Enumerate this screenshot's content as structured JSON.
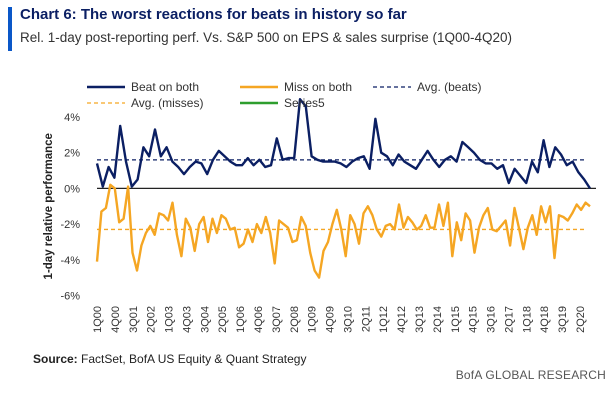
{
  "header": {
    "title": "Chart 6: The worst reactions for beats in history so far",
    "subtitle": "Rel. 1-day post-reporting perf. Vs. S&P 500 on EPS & sales surprise (1Q00-4Q20)"
  },
  "footer": {
    "source_label": "Source:",
    "source_text": " FactSet, BofA US Equity & Quant Strategy",
    "brand": "BofA GLOBAL RESEARCH"
  },
  "colors": {
    "beat": "#0b1f63",
    "miss": "#f5a623",
    "series5": "#2e9e2e",
    "accent": "#0a57c8"
  },
  "chart_data": {
    "type": "line",
    "ylabel": "1-day relative performance",
    "ylim": [
      -6,
      4
    ],
    "yticks": [
      4,
      2,
      0,
      -2,
      -4,
      -6
    ],
    "ytick_labels": [
      "4%",
      "2%",
      "0%",
      "-2%",
      "-4%",
      "-6%"
    ],
    "xtick_labels": [
      "1Q00",
      "4Q00",
      "3Q01",
      "2Q02",
      "1Q03",
      "4Q03",
      "3Q04",
      "2Q05",
      "1Q06",
      "4Q06",
      "3Q07",
      "2Q08",
      "1Q09",
      "4Q09",
      "3Q10",
      "2Q11",
      "1Q12",
      "4Q12",
      "3Q13",
      "2Q14",
      "1Q15",
      "4Q15",
      "3Q16",
      "2Q17",
      "1Q18",
      "4Q18",
      "3Q19",
      "2Q20"
    ],
    "grid": false,
    "legend": "top",
    "series": [
      {
        "name": "Beat on both",
        "style": "solid",
        "color": "#0b1f63",
        "values": [
          1.4,
          0.1,
          1.2,
          0.6,
          3.5,
          1.5,
          0.1,
          0.5,
          2.3,
          1.8,
          3.3,
          1.8,
          2.3,
          1.5,
          1.2,
          0.8,
          1.2,
          1.5,
          1.4,
          0.8,
          1.6,
          2.1,
          1.8,
          1.5,
          1.3,
          1.3,
          1.7,
          1.3,
          1.6,
          1.2,
          1.3,
          2.8,
          1.6,
          1.7,
          1.7,
          5.0,
          4.6,
          1.8,
          1.6,
          1.5,
          1.5,
          1.5,
          1.4,
          1.2,
          1.5,
          1.7,
          1.8,
          1.1,
          3.9,
          2.0,
          1.8,
          1.3,
          1.9,
          1.5,
          1.3,
          1.1,
          1.6,
          2.1,
          1.6,
          1.2,
          1.6,
          1.8,
          1.5,
          2.6,
          2.3,
          2.0,
          1.6,
          1.4,
          1.4,
          1.1,
          1.3,
          0.3,
          1.1,
          0.7,
          0.3,
          1.5,
          0.9,
          2.7,
          1.2,
          2.3,
          1.9,
          1.3,
          1.5,
          0.9,
          0.5,
          0.0
        ]
      },
      {
        "name": "Miss on both",
        "style": "solid",
        "color": "#f5a623",
        "values": [
          -4.1,
          -1.3,
          -1.1,
          0.2,
          0.0,
          -1.9,
          -1.7,
          0.1,
          -3.6,
          -4.6,
          -3.2,
          -2.5,
          -2.1,
          -2.6,
          -1.4,
          -1.5,
          -1.8,
          -0.8,
          -2.6,
          -3.8,
          -1.7,
          -2.2,
          -3.5,
          -2.0,
          -1.6,
          -3.0,
          -1.7,
          -2.5,
          -1.5,
          -1.7,
          -2.3,
          -2.2,
          -3.3,
          -3.1,
          -2.3,
          -3.0,
          -2.0,
          -2.5,
          -1.6,
          -2.5,
          -4.2,
          -1.8,
          -2.0,
          -2.2,
          -3.0,
          -2.9,
          -1.6,
          -2.1,
          -3.6,
          -4.6,
          -5.0,
          -3.5,
          -3.0,
          -2.0,
          -1.2,
          -2.3,
          -3.8,
          -1.5,
          -2.0,
          -3.1,
          -1.4,
          -1.0,
          -1.5,
          -2.3,
          -2.7,
          -2.1,
          -2.0,
          -2.3,
          -0.9,
          -2.2,
          -1.6,
          -1.9,
          -2.3,
          -2.1,
          -1.5,
          -2.2,
          -2.2,
          -0.9,
          -2.1,
          -0.8,
          -3.8,
          -1.9,
          -2.9,
          -1.4,
          -1.8,
          -3.6,
          -2.2,
          -1.5,
          -1.1,
          -2.3,
          -2.4,
          -2.1,
          -1.8,
          -3.2,
          -1.1,
          -2.2,
          -3.4,
          -2.2,
          -1.5,
          -2.6,
          -1.0,
          -1.9,
          -1.0,
          -3.9,
          -1.5,
          -1.6,
          -1.8,
          -1.4,
          -0.9,
          -1.2,
          -0.8,
          -1.0
        ]
      },
      {
        "name": "Avg. (beats)",
        "style": "dashed",
        "color": "#0b1f63",
        "values": [
          1.6
        ]
      },
      {
        "name": "Avg. (misses)",
        "style": "dashed",
        "color": "#f5a623",
        "values": [
          -2.3
        ]
      },
      {
        "name": "Series5",
        "style": "solid",
        "color": "#2e9e2e",
        "values": []
      }
    ]
  }
}
